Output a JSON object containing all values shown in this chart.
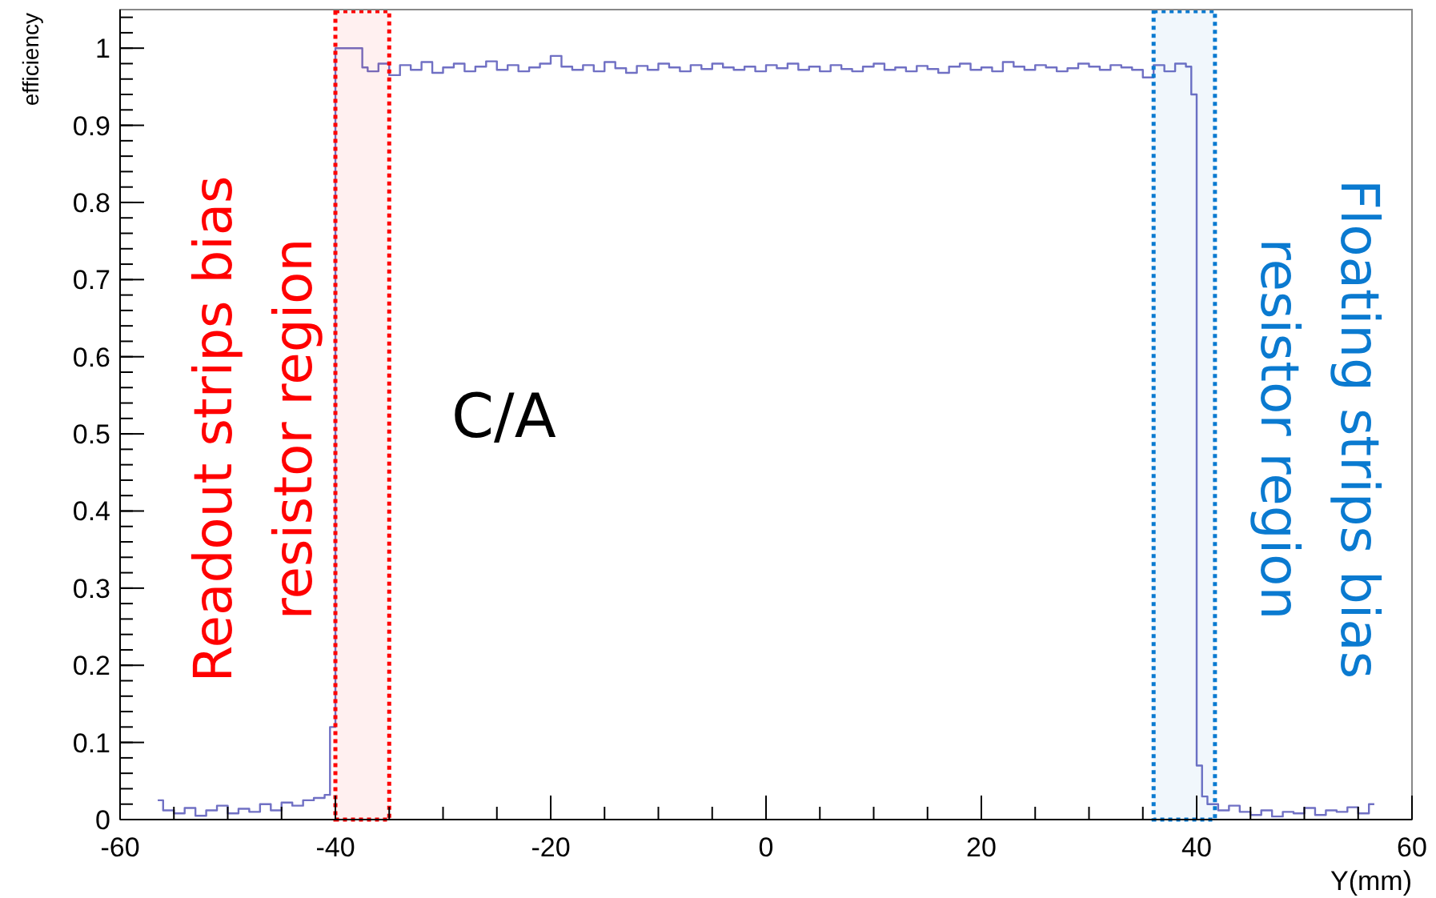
{
  "chart_data": {
    "type": "step",
    "xlabel": "Y(mm)",
    "ylabel": "efficiency",
    "xlim": [
      -60,
      60
    ],
    "xticks": [
      -60,
      -40,
      -20,
      0,
      20,
      40,
      60
    ],
    "ylim": [
      0,
      1.05
    ],
    "yticks": [
      0,
      0.1,
      0.2,
      0.3,
      0.4,
      0.5,
      0.6,
      0.7,
      0.8,
      0.9,
      1
    ],
    "grid": false,
    "series": [
      {
        "color": "#7070c4",
        "x": [
          -56.5,
          -56,
          -55,
          -54,
          -53,
          -52,
          -51,
          -50,
          -49,
          -48,
          -47,
          -46,
          -45,
          -44,
          -43,
          -42,
          -41,
          -40.5,
          -40,
          -37.5,
          -37,
          -36,
          -35,
          -34,
          -33,
          -32,
          -31,
          -30,
          -29,
          -28,
          -27,
          -26,
          -25,
          -24,
          -23,
          -22,
          -21,
          -20,
          -19,
          -18,
          -17,
          -16,
          -15,
          -14,
          -13,
          -12,
          -11,
          -10,
          -9,
          -8,
          -7,
          -6,
          -5,
          -4,
          -3,
          -2,
          -1,
          0,
          1,
          2,
          3,
          4,
          5,
          6,
          7,
          8,
          9,
          10,
          11,
          12,
          13,
          14,
          15,
          16,
          17,
          18,
          19,
          20,
          21,
          22,
          23,
          24,
          25,
          26,
          27,
          28,
          29,
          30,
          31,
          32,
          33,
          34,
          35,
          36,
          37,
          38,
          39,
          39.5,
          40,
          40.5,
          41,
          42,
          43,
          44,
          45,
          46,
          47,
          48,
          49,
          50,
          51,
          52,
          53,
          54,
          55,
          56,
          56.5
        ],
        "values": [
          0.025,
          0.012,
          0.008,
          0.015,
          0.005,
          0.012,
          0.018,
          0.008,
          0.014,
          0.01,
          0.02,
          0.012,
          0.022,
          0.018,
          0.025,
          0.028,
          0.032,
          0.12,
          1.0,
          0.975,
          0.97,
          0.98,
          0.965,
          0.978,
          0.972,
          0.982,
          0.968,
          0.975,
          0.98,
          0.97,
          0.976,
          0.983,
          0.972,
          0.978,
          0.97,
          0.975,
          0.98,
          0.99,
          0.976,
          0.972,
          0.978,
          0.97,
          0.982,
          0.974,
          0.968,
          0.977,
          0.972,
          0.98,
          0.975,
          0.97,
          0.978,
          0.973,
          0.98,
          0.975,
          0.972,
          0.976,
          0.97,
          0.978,
          0.974,
          0.98,
          0.972,
          0.976,
          0.97,
          0.978,
          0.973,
          0.97,
          0.976,
          0.98,
          0.972,
          0.975,
          0.97,
          0.977,
          0.973,
          0.968,
          0.976,
          0.98,
          0.972,
          0.975,
          0.97,
          0.982,
          0.976,
          0.972,
          0.978,
          0.975,
          0.97,
          0.974,
          0.98,
          0.976,
          0.972,
          0.978,
          0.975,
          0.972,
          0.962,
          0.978,
          0.97,
          0.98,
          0.976,
          0.94,
          0.07,
          0.03,
          0.02,
          0.012,
          0.018,
          0.01,
          0.006,
          0.012,
          0.004,
          0.01,
          0.008,
          0.015,
          0.006,
          0.012,
          0.01,
          0.016,
          0.008,
          0.02,
          0.02
        ]
      }
    ],
    "bands": [
      {
        "axis": "x",
        "from": -40,
        "to": -35,
        "color": "#ff0000",
        "label": "Readout strips bias\nresistor region"
      },
      {
        "axis": "x",
        "from": 36,
        "to": 41.7,
        "color": "#0a7ad0",
        "label": "Floating strips bias\nresistor region"
      }
    ],
    "annotations": [
      "C/A"
    ]
  }
}
